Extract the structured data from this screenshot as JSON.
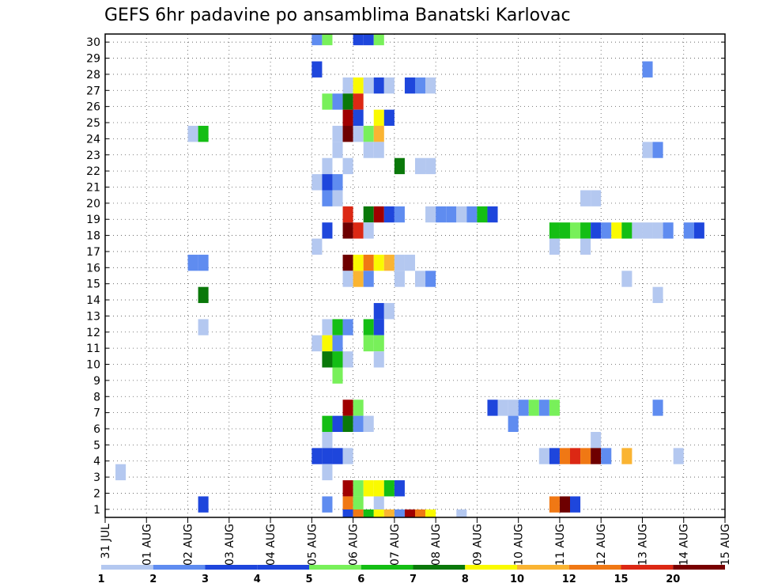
{
  "chart_data": {
    "type": "heatmap",
    "title": "GEFS 6hr padavine po ansamblima Banatski Karlovac",
    "xlabel": "",
    "ylabel": "",
    "x_tick_labels": [
      "31 JUL",
      "01 AUG",
      "02 AUG",
      "03 AUG",
      "04 AUG",
      "05 AUG",
      "06 AUG",
      "07 AUG",
      "08 AUG",
      "09 AUG",
      "10 AUG",
      "11 AUG",
      "12 AUG",
      "13 AUG",
      "14 AUG",
      "15 AUG"
    ],
    "y_tick_labels": [
      "1",
      "2",
      "3",
      "4",
      "5",
      "6",
      "7",
      "8",
      "9",
      "10",
      "11",
      "12",
      "13",
      "14",
      "15",
      "16",
      "17",
      "18",
      "19",
      "20",
      "21",
      "22",
      "23",
      "24",
      "25",
      "26",
      "27",
      "28",
      "29",
      "30"
    ],
    "xlim_steps": [
      0,
      60
    ],
    "ylim_members": [
      0,
      30
    ],
    "grid": true,
    "cells_note": "",
    "legend": {
      "labels": [
        "1",
        "2",
        "3",
        "4",
        "5",
        "6",
        "7",
        "8",
        "10",
        "12",
        "15",
        "20"
      ],
      "colors": [
        "#b4c8f0",
        "#5f8cf0",
        "#1e46dc",
        "#1e46dc",
        "#78f05a",
        "#14be14",
        "#0a780a",
        "#fafa00",
        "#fab432",
        "#f07814",
        "#dc2814",
        "#780000"
      ]
    },
    "palette": [
      "#b4c8f0",
      "#5f8cf0",
      "#1e46dc",
      "#78f05a",
      "#14be14",
      "#0a780a",
      "#fafa00",
      "#fab432",
      "#f07814",
      "#dc2814",
      "#a00000",
      "#6e0000"
    ],
    "cells": [
      [
        30,
        20,
        1
      ],
      [
        30,
        21,
        3
      ],
      [
        30,
        24,
        2
      ],
      [
        30,
        25,
        2
      ],
      [
        30,
        26,
        3
      ],
      [
        28,
        20,
        2
      ],
      [
        28,
        52,
        1
      ],
      [
        27,
        23,
        0
      ],
      [
        27,
        24,
        6
      ],
      [
        27,
        25,
        0
      ],
      [
        27,
        26,
        2
      ],
      [
        27,
        27,
        0
      ],
      [
        27,
        29,
        2
      ],
      [
        27,
        30,
        1
      ],
      [
        27,
        31,
        0
      ],
      [
        26,
        21,
        3
      ],
      [
        26,
        22,
        1
      ],
      [
        26,
        23,
        5
      ],
      [
        26,
        24,
        9
      ],
      [
        25,
        23,
        10
      ],
      [
        25,
        24,
        2
      ],
      [
        25,
        26,
        6
      ],
      [
        25,
        27,
        2
      ],
      [
        24,
        8,
        0
      ],
      [
        24,
        9,
        4
      ],
      [
        24,
        22,
        0
      ],
      [
        24,
        23,
        11
      ],
      [
        24,
        24,
        0
      ],
      [
        24,
        25,
        3
      ],
      [
        24,
        26,
        7
      ],
      [
        23,
        22,
        0
      ],
      [
        23,
        25,
        0
      ],
      [
        23,
        26,
        0
      ],
      [
        23,
        52,
        0
      ],
      [
        23,
        53,
        1
      ],
      [
        22,
        21,
        0
      ],
      [
        22,
        23,
        0
      ],
      [
        22,
        28,
        5
      ],
      [
        22,
        30,
        0
      ],
      [
        22,
        31,
        0
      ],
      [
        21,
        20,
        0
      ],
      [
        21,
        21,
        2
      ],
      [
        21,
        22,
        1
      ],
      [
        20,
        21,
        1
      ],
      [
        20,
        22,
        0
      ],
      [
        20,
        46,
        0
      ],
      [
        20,
        47,
        0
      ],
      [
        19,
        23,
        9
      ],
      [
        19,
        25,
        5
      ],
      [
        19,
        26,
        10
      ],
      [
        19,
        27,
        2
      ],
      [
        19,
        28,
        1
      ],
      [
        19,
        31,
        0
      ],
      [
        19,
        32,
        1
      ],
      [
        19,
        33,
        1
      ],
      [
        19,
        34,
        0
      ],
      [
        19,
        35,
        1
      ],
      [
        19,
        36,
        4
      ],
      [
        19,
        37,
        2
      ],
      [
        18,
        21,
        2
      ],
      [
        18,
        23,
        11
      ],
      [
        18,
        24,
        9
      ],
      [
        18,
        25,
        0
      ],
      [
        18,
        43,
        4
      ],
      [
        18,
        44,
        4
      ],
      [
        18,
        45,
        3
      ],
      [
        18,
        46,
        4
      ],
      [
        18,
        47,
        2
      ],
      [
        18,
        48,
        1
      ],
      [
        18,
        49,
        6
      ],
      [
        18,
        50,
        4
      ],
      [
        18,
        51,
        0
      ],
      [
        18,
        52,
        0
      ],
      [
        18,
        53,
        0
      ],
      [
        18,
        54,
        1
      ],
      [
        18,
        56,
        1
      ],
      [
        18,
        57,
        2
      ],
      [
        17,
        20,
        0
      ],
      [
        17,
        43,
        0
      ],
      [
        17,
        46,
        0
      ],
      [
        16,
        8,
        1
      ],
      [
        16,
        9,
        1
      ],
      [
        16,
        23,
        11
      ],
      [
        16,
        24,
        6
      ],
      [
        16,
        25,
        8
      ],
      [
        16,
        26,
        6
      ],
      [
        16,
        27,
        7
      ],
      [
        16,
        28,
        0
      ],
      [
        16,
        29,
        0
      ],
      [
        15,
        23,
        0
      ],
      [
        15,
        24,
        7
      ],
      [
        15,
        25,
        1
      ],
      [
        15,
        28,
        0
      ],
      [
        15,
        30,
        0
      ],
      [
        15,
        31,
        1
      ],
      [
        15,
        50,
        0
      ],
      [
        14,
        9,
        5
      ],
      [
        14,
        53,
        0
      ],
      [
        13,
        26,
        2
      ],
      [
        13,
        27,
        0
      ],
      [
        12,
        9,
        0
      ],
      [
        12,
        21,
        0
      ],
      [
        12,
        22,
        4
      ],
      [
        12,
        23,
        1
      ],
      [
        12,
        25,
        4
      ],
      [
        12,
        26,
        2
      ],
      [
        11,
        20,
        0
      ],
      [
        11,
        21,
        6
      ],
      [
        11,
        22,
        1
      ],
      [
        11,
        25,
        3
      ],
      [
        11,
        26,
        3
      ],
      [
        10,
        21,
        5
      ],
      [
        10,
        22,
        4
      ],
      [
        10,
        23,
        0
      ],
      [
        10,
        26,
        0
      ],
      [
        9,
        22,
        3
      ],
      [
        7,
        23,
        10
      ],
      [
        7,
        24,
        3
      ],
      [
        7,
        37,
        2
      ],
      [
        7,
        38,
        0
      ],
      [
        7,
        39,
        0
      ],
      [
        7,
        40,
        1
      ],
      [
        7,
        41,
        3
      ],
      [
        7,
        42,
        1
      ],
      [
        7,
        43,
        3
      ],
      [
        7,
        53,
        1
      ],
      [
        6,
        21,
        4
      ],
      [
        6,
        22,
        2
      ],
      [
        6,
        23,
        5
      ],
      [
        6,
        24,
        1
      ],
      [
        6,
        25,
        0
      ],
      [
        6,
        39,
        1
      ],
      [
        5,
        21,
        0
      ],
      [
        5,
        47,
        0
      ],
      [
        4,
        20,
        2
      ],
      [
        4,
        21,
        2
      ],
      [
        4,
        22,
        2
      ],
      [
        4,
        23,
        0
      ],
      [
        4,
        42,
        0
      ],
      [
        4,
        43,
        2
      ],
      [
        4,
        44,
        8
      ],
      [
        4,
        45,
        9
      ],
      [
        4,
        46,
        8
      ],
      [
        4,
        47,
        11
      ],
      [
        4,
        48,
        1
      ],
      [
        4,
        50,
        7
      ],
      [
        4,
        55,
        0
      ],
      [
        3,
        1,
        0
      ],
      [
        3,
        21,
        0
      ],
      [
        2,
        23,
        10
      ],
      [
        2,
        24,
        3
      ],
      [
        2,
        25,
        6
      ],
      [
        2,
        26,
        6
      ],
      [
        2,
        27,
        4
      ],
      [
        2,
        28,
        2
      ],
      [
        1,
        9,
        2
      ],
      [
        1,
        21,
        1
      ],
      [
        1,
        23,
        8
      ],
      [
        1,
        24,
        3
      ],
      [
        1,
        26,
        0
      ],
      [
        1,
        43,
        8
      ],
      [
        1,
        44,
        11
      ],
      [
        1,
        45,
        2
      ],
      [
        0,
        23,
        2
      ],
      [
        0,
        24,
        8
      ],
      [
        0,
        25,
        4
      ],
      [
        0,
        26,
        6
      ],
      [
        0,
        27,
        7
      ],
      [
        0,
        28,
        1
      ],
      [
        0,
        29,
        10
      ],
      [
        0,
        30,
        8
      ],
      [
        0,
        31,
        6
      ],
      [
        0,
        34,
        0
      ]
    ]
  }
}
